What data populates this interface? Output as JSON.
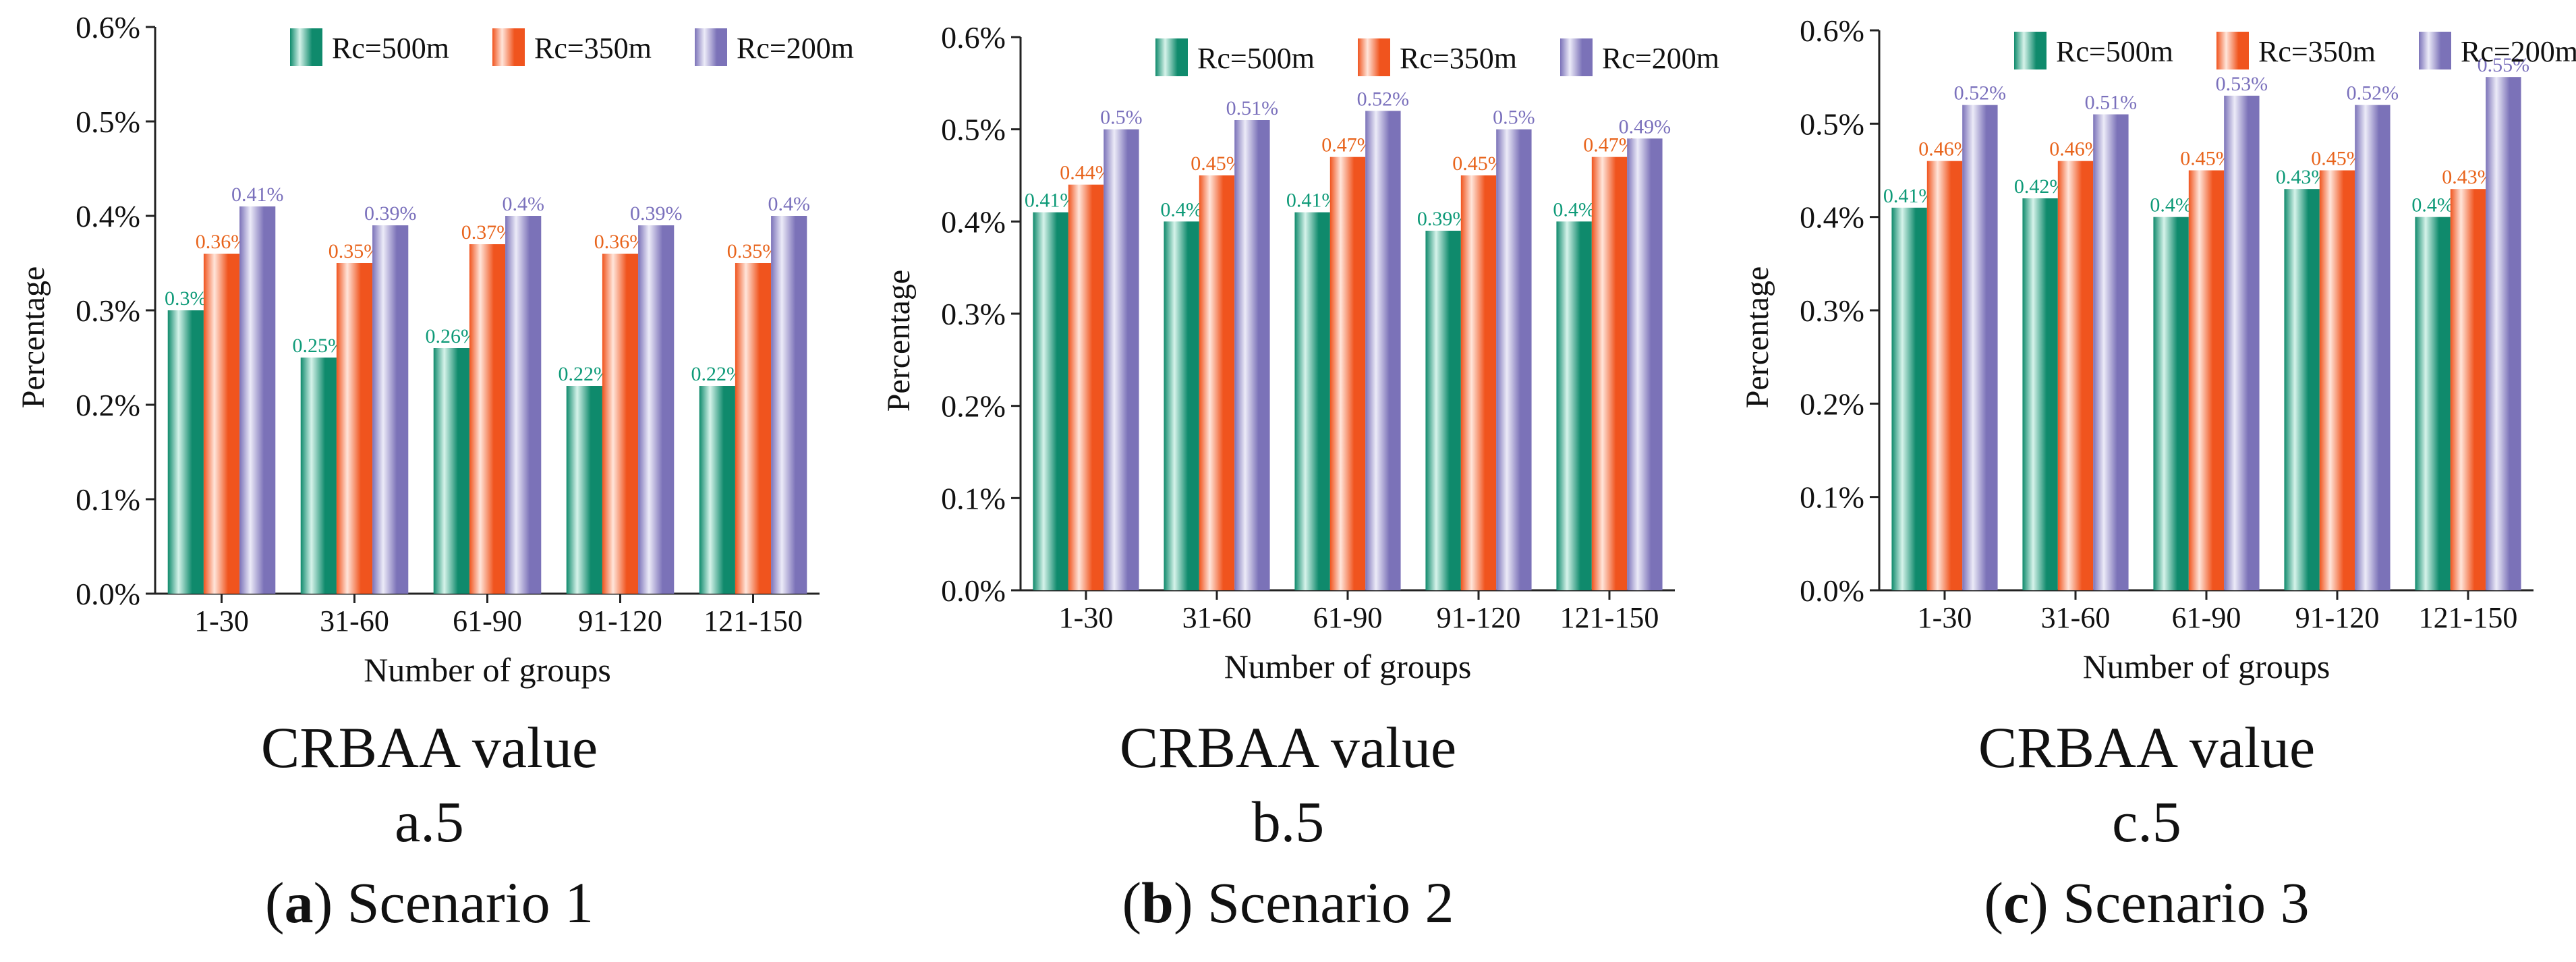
{
  "chart_data": [
    {
      "id": "a",
      "type": "bar",
      "xlabel": "Number of groups",
      "ylabel": "Percentage",
      "ylim": [
        0,
        0.6
      ],
      "yticks": [
        "0.0%",
        "0.1%",
        "0.2%",
        "0.3%",
        "0.4%",
        "0.5%",
        "0.6%"
      ],
      "categories": [
        "1-30",
        "31-60",
        "61-90",
        "91-120",
        "121-150"
      ],
      "legend_position": "top",
      "series": [
        {
          "name": "Rc=500m",
          "values": [
            0.3,
            0.25,
            0.26,
            0.22,
            0.22
          ],
          "labels": [
            "0.3%",
            "0.25%",
            "0.26%",
            "0.22%",
            "0.22%"
          ]
        },
        {
          "name": "Rc=350m",
          "values": [
            0.36,
            0.35,
            0.37,
            0.36,
            0.35
          ],
          "labels": [
            "0.36%",
            "0.35%",
            "0.37%",
            "0.36%",
            "0.35%"
          ]
        },
        {
          "name": "Rc=200m",
          "values": [
            0.41,
            0.39,
            0.4,
            0.39,
            0.4
          ],
          "labels": [
            "0.41%",
            "0.39%",
            "0.4%",
            "0.39%",
            "0.4%"
          ]
        }
      ],
      "caption_title": "CRBAA value",
      "caption_sub": "a.5",
      "caption_letter": "a",
      "caption_scenario": "Scenario 1"
    },
    {
      "id": "b",
      "type": "bar",
      "xlabel": "Number of groups",
      "ylabel": "Percentage",
      "ylim": [
        0,
        0.6
      ],
      "yticks": [
        "0.0%",
        "0.1%",
        "0.2%",
        "0.3%",
        "0.4%",
        "0.5%",
        "0.6%"
      ],
      "categories": [
        "1-30",
        "31-60",
        "61-90",
        "91-120",
        "121-150"
      ],
      "legend_position": "top",
      "series": [
        {
          "name": "Rc=500m",
          "values": [
            0.41,
            0.4,
            0.41,
            0.39,
            0.4
          ],
          "labels": [
            "0.41%",
            "0.4%",
            "0.41%",
            "0.39%",
            "0.4%"
          ]
        },
        {
          "name": "Rc=350m",
          "values": [
            0.44,
            0.45,
            0.47,
            0.45,
            0.47
          ],
          "labels": [
            "0.44%",
            "0.45%",
            "0.47%",
            "0.45%",
            "0.47%"
          ]
        },
        {
          "name": "Rc=200m",
          "values": [
            0.5,
            0.51,
            0.52,
            0.5,
            0.49
          ],
          "labels": [
            "0.5%",
            "0.51%",
            "0.52%",
            "0.5%",
            "0.49%"
          ]
        }
      ],
      "caption_title": "CRBAA value",
      "caption_sub": "b.5",
      "caption_letter": "b",
      "caption_scenario": "Scenario 2"
    },
    {
      "id": "c",
      "type": "bar",
      "xlabel": "Number of groups",
      "ylabel": "Percentage",
      "ylim": [
        0,
        0.6
      ],
      "yticks": [
        "0.0%",
        "0.1%",
        "0.2%",
        "0.3%",
        "0.4%",
        "0.5%",
        "0.6%"
      ],
      "categories": [
        "1-30",
        "31-60",
        "61-90",
        "91-120",
        "121-150"
      ],
      "legend_position": "top",
      "series": [
        {
          "name": "Rc=500m",
          "values": [
            0.41,
            0.42,
            0.4,
            0.43,
            0.4
          ],
          "labels": [
            "0.41%",
            "0.42%",
            "0.4%",
            "0.43%",
            "0.4%"
          ]
        },
        {
          "name": "Rc=350m",
          "values": [
            0.46,
            0.46,
            0.45,
            0.45,
            0.43
          ],
          "labels": [
            "0.46%",
            "0.46%",
            "0.45%",
            "0.45%",
            "0.43%"
          ]
        },
        {
          "name": "Rc=200m",
          "values": [
            0.52,
            0.51,
            0.53,
            0.52,
            0.55
          ],
          "labels": [
            "0.52%",
            "0.51%",
            "0.53%",
            "0.52%",
            "0.55%"
          ]
        }
      ],
      "caption_title": "CRBAA value",
      "caption_sub": "c.5",
      "caption_letter": "c",
      "caption_scenario": "Scenario 3"
    }
  ],
  "colors": {
    "series_dark": [
      "#0f8a6c",
      "#f0541e",
      "#7b72b8"
    ],
    "series_light": [
      "#d6f3ea",
      "#ffe5da",
      "#ecebf8"
    ],
    "label": [
      "#0e9a78",
      "#e8641c",
      "#7a70bc"
    ]
  }
}
